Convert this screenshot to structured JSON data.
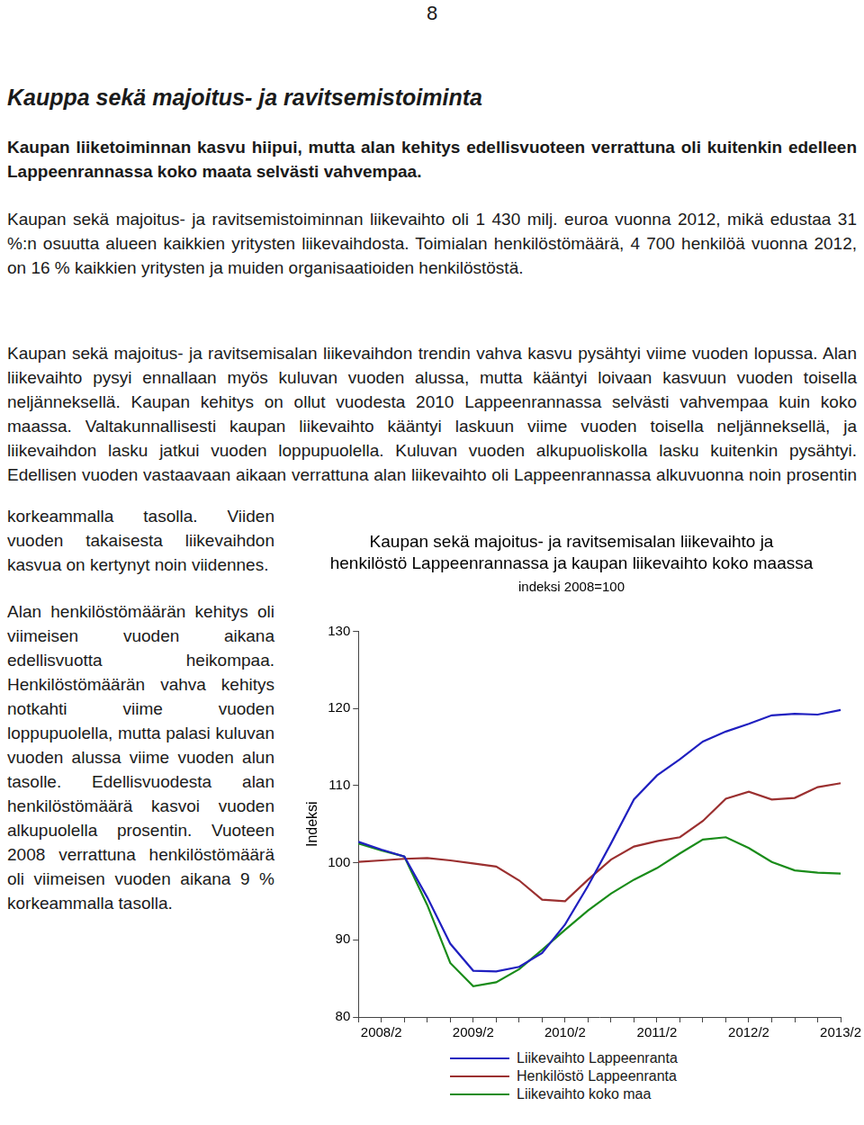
{
  "page_number": "8",
  "title": "Kauppa sekä majoitus- ja ravitsemistoiminta",
  "lead": "Kaupan liiketoiminnan kasvu hiipui, mutta alan kehitys edellisvuoteen verrattuna oli kuitenkin edelleen Lappeenrannassa koko maata selvästi vahvempaa.",
  "paragraphs": [
    [
      "Kaupan sekä majoitus- ja ravitsemistoiminnan liikevaihto oli 1 430 milj. euroa vuonna 2012, mikä edustaa 31 %:n osuutta alueen kaikkien yritysten liikevaihdosta. Toimialan henkilöstömäärä, 4 700 henkilöä vuonna 2012, on 16 % kaikkien yritysten ja muiden organisaatioiden henkilöstöstä."
    ],
    [
      "Kaupan sekä majoitus- ja ravitsemisalan liikevaihdon trendin vahva kasvu pysähtyi viime vuoden lopussa. Alan liikevaihto pysyi ennallaan myös kuluvan vuoden alussa, mutta kääntyi loivaan kasvuun vuoden toisella neljänneksellä. Kaupan kehitys on ollut vuodesta 2010 Lappeenrannassa selvästi vahvempaa kuin koko maassa. Valtakunnallisesti kaupan liikevaihto kääntyi laskuun viime vuoden toisella neljänneksellä, ja liikevaihdon lasku jatkui vuoden loppupuolella. Kuluvan vuoden alkupuoliskolla lasku kuitenkin pysähtyi. Edellisen vuoden vastaavaan aikaan verrattuna alan liikevaihto oli Lappeenrannassa alkuvuonna noin prosentin",
      "korkeammalla tasolla. Viiden vuoden takaisesta liikevaihdon kasvua on kertynyt noin viidennes."
    ],
    [
      "Alan henkilöstömäärän kehitys oli viimeisen vuoden aikana edellisvuotta heikompaa. Henkilöstömäärän vahva kehitys notkahti viime vuoden loppupuolella, mutta palasi kuluvan vuoden alussa viime vuoden alun tasolle. Edellisvuodesta alan henkilöstömäärä kasvoi vuoden alkupuolella prosentin. Vuoteen 2008 verrattuna henkilöstömäärä oli viimeisen vuoden aikana 9 % korkeammalla tasolla."
    ]
  ],
  "chart_data": {
    "type": "line",
    "title": [
      "Kaupan sekä majoitus- ja ravitsemisalan liikevaihto ja",
      "henkilöstö Lappeenrannassa ja kaupan liikevaihto koko maassa"
    ],
    "subtitle": "indeksi 2008=100",
    "y_label": "Indeksi",
    "categories": [
      null,
      "2008/2",
      null,
      null,
      null,
      "2009/2",
      null,
      null,
      null,
      "2010/2",
      null,
      null,
      null,
      "2011/2",
      null,
      null,
      null,
      "2012/2",
      null,
      null,
      null,
      "2013/2"
    ],
    "series": [
      {
        "name": "Liikevaihto Lappeenranta",
        "color": "#2020c0",
        "values": [
          102.7,
          101.7,
          100.8,
          95.5,
          89.5,
          86.0,
          85.9,
          86.5,
          88.3,
          92.0,
          97.0,
          102.5,
          108.2,
          111.3,
          113.4,
          115.7,
          117.0,
          118.0,
          119.1,
          119.3,
          119.2,
          119.8
        ]
      },
      {
        "name": "Henkilöstö Lappeenranta",
        "color": "#9b3030",
        "values": [
          100.1,
          100.3,
          100.5,
          100.6,
          100.3,
          99.9,
          99.5,
          97.7,
          95.2,
          95.0,
          97.8,
          100.4,
          102.1,
          102.8,
          103.3,
          105.4,
          108.3,
          109.2,
          108.2,
          108.4,
          109.8,
          110.3
        ]
      },
      {
        "name": "Liikevaihto koko maa",
        "color": "#1a8c1a",
        "values": [
          102.5,
          101.6,
          100.8,
          94.5,
          87.0,
          84.0,
          84.5,
          86.2,
          88.7,
          91.3,
          93.8,
          96.0,
          97.8,
          99.3,
          101.2,
          103.0,
          103.3,
          101.9,
          100.1,
          99.0,
          98.7,
          98.6
        ]
      }
    ],
    "ylim": [
      80,
      130
    ],
    "yticks": [
      80,
      90,
      100,
      110,
      120,
      130
    ],
    "grid": false,
    "legend": "bottom"
  }
}
